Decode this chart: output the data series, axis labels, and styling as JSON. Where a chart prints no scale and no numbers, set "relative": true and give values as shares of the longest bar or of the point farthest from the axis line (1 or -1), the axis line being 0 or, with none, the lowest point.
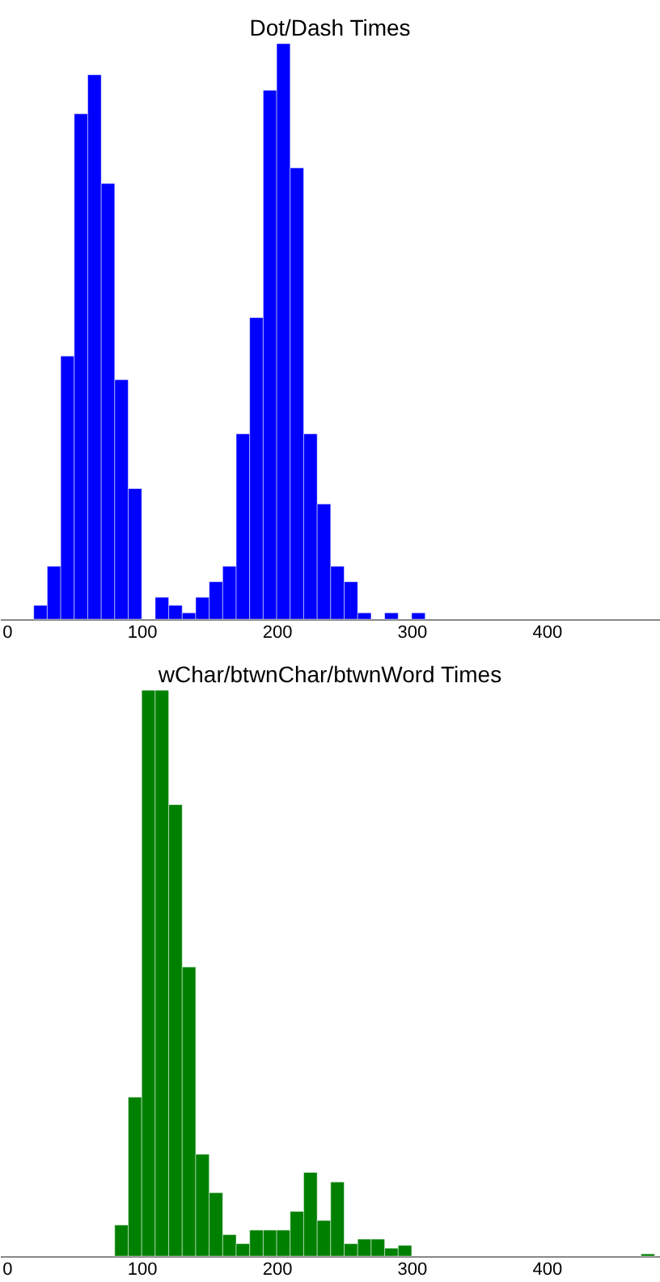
{
  "chart_data": [
    {
      "type": "bar",
      "title": "Dot/Dash Times",
      "relative": true,
      "xlim": [
        -5,
        484
      ],
      "xticks": [
        0,
        100,
        200,
        300,
        400
      ],
      "x": [
        25,
        35,
        45,
        55,
        65,
        75,
        85,
        95,
        105,
        115,
        125,
        135,
        145,
        155,
        165,
        175,
        185,
        195,
        205,
        215,
        225,
        235,
        245,
        255,
        265,
        275,
        285,
        295,
        305
      ],
      "series": [
        {
          "color": "#0000ff",
          "values": [
            0.024,
            0.092,
            0.457,
            0.878,
            0.946,
            0.757,
            0.416,
            0.227,
            0,
            0.038,
            0.024,
            0.011,
            0.038,
            0.065,
            0.092,
            0.322,
            0.524,
            0.919,
            1,
            0.784,
            0.322,
            0.2,
            0.092,
            0.065,
            0.011,
            0,
            0.011,
            0,
            0.011
          ]
        }
      ]
    },
    {
      "type": "bar",
      "title": "wChar/btwnChar/btwnWord Times",
      "relative": true,
      "xlim": [
        -5,
        484
      ],
      "xticks": [
        0,
        100,
        200,
        300,
        400
      ],
      "x": [
        85,
        95,
        105,
        115,
        125,
        135,
        145,
        155,
        165,
        175,
        185,
        195,
        205,
        215,
        225,
        235,
        245,
        255,
        265,
        275,
        285,
        295,
        305,
        315,
        325,
        335,
        345,
        355,
        365,
        375,
        385,
        395,
        405,
        415,
        425,
        435,
        445,
        455,
        465,
        475
      ],
      "series": [
        {
          "color": "#008000",
          "values": [
            0.055,
            0.281,
            1,
            1,
            0.798,
            0.511,
            0.18,
            0.112,
            0.038,
            0.022,
            0.046,
            0.046,
            0.046,
            0.079,
            0.148,
            0.063,
            0.131,
            0.022,
            0.03,
            0.03,
            0.014,
            0.019,
            0,
            0,
            0,
            0,
            0,
            0,
            0,
            0,
            0,
            0,
            0,
            0,
            0,
            0,
            0,
            0,
            0,
            0.004
          ]
        }
      ]
    }
  ]
}
